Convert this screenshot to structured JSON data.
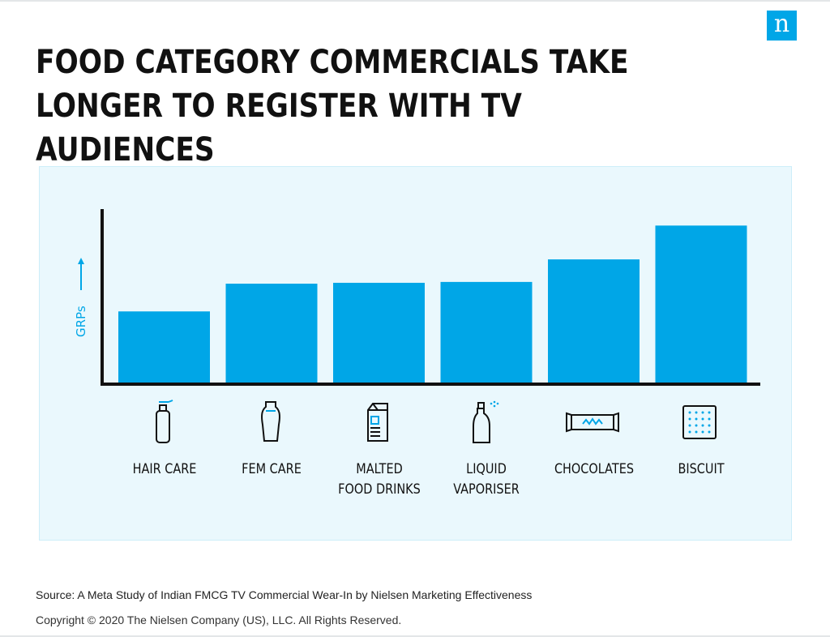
{
  "logo": {
    "letter": "n",
    "color": "#00a6e7"
  },
  "title": "FOOD CATEGORY COMMERCIALS TAKE LONGER TO REGISTER WITH TV AUDIENCES",
  "chart_data": {
    "type": "bar",
    "ylabel": "GRPs",
    "ylabel_arrow": "up",
    "yaxis_ticks": false,
    "grid": false,
    "legend": "none",
    "ylim": [
      0,
      100
    ],
    "bar_color": "#00a6e7",
    "categories": [
      "HAIR CARE",
      "FEM CARE",
      "MALTED\nFOOD DRINKS",
      "LIQUID\nVAPORISER",
      "CHOCOLATES",
      "BISCUIT"
    ],
    "category_icons": [
      "hair-spray-bottle-icon",
      "fem-care-bottle-icon",
      "milk-carton-icon",
      "spray-bottle-icon",
      "chocolate-bar-icon",
      "biscuit-icon"
    ],
    "values": [
      41,
      57,
      57.5,
      58,
      71,
      90.5
    ],
    "value_units": "relative (no scale shown)"
  },
  "footer": {
    "source": "Source: A Meta Study of Indian FMCG TV Commercial Wear-In by Nielsen Marketing Effectiveness",
    "copyright": "Copyright © 2020 The Nielsen Company (US), LLC. All Rights Reserved."
  }
}
